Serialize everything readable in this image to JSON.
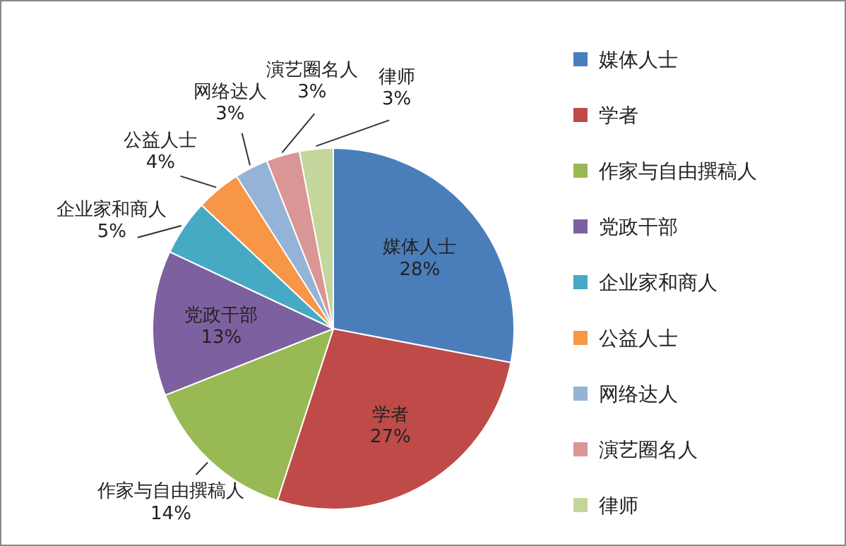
{
  "chart_data": {
    "type": "pie",
    "categories": [
      "媒体人士",
      "学者",
      "作家与自由撰稿人",
      "党政干部",
      "企业家和商人",
      "公益人士",
      "网络达人",
      "演艺圈名人",
      "律师"
    ],
    "values": [
      28,
      27,
      14,
      13,
      5,
      4,
      3,
      3,
      3
    ],
    "value_labels": [
      "28%",
      "27%",
      "14%",
      "13%",
      "5%",
      "4%",
      "3%",
      "3%",
      "3%"
    ],
    "colors": [
      "#4a7ebb",
      "#be4b48",
      "#98b954",
      "#7d60a0",
      "#46aac5",
      "#f79646",
      "#95b3d7",
      "#d99694",
      "#c3d69b"
    ],
    "legend": "right"
  }
}
